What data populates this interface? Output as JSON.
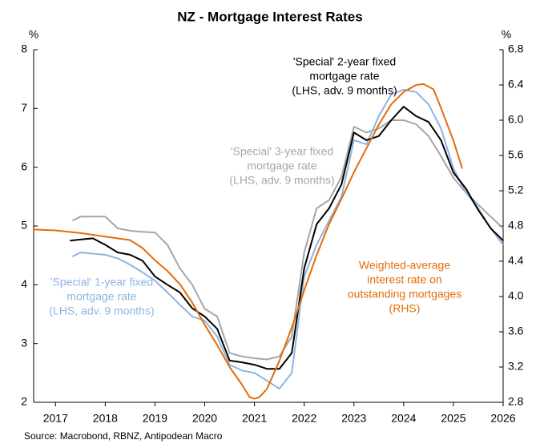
{
  "chart_data": {
    "type": "line",
    "title": "NZ - Mortgage Interest Rates",
    "y_unit": "%",
    "y2_unit": "%",
    "source": "Source: Macrobond, RBNZ, Antipodean Macro",
    "xlim": [
      2017.06,
      2026.5
    ],
    "xticks": [
      {
        "value": 2017.5,
        "label": "2017"
      },
      {
        "value": 2018.5,
        "label": "2018"
      },
      {
        "value": 2019.5,
        "label": "2019"
      },
      {
        "value": 2020.5,
        "label": "2020"
      },
      {
        "value": 2021.5,
        "label": "2021"
      },
      {
        "value": 2022.5,
        "label": "2022"
      },
      {
        "value": 2023.5,
        "label": "2023"
      },
      {
        "value": 2024.5,
        "label": "2024"
      },
      {
        "value": 2025.5,
        "label": "2025"
      },
      {
        "value": 2026.5,
        "label": "2026"
      }
    ],
    "ylim": [
      2,
      8
    ],
    "yticks": [
      2,
      3,
      4,
      5,
      6,
      7,
      8
    ],
    "y2lim": [
      2.8,
      6.8
    ],
    "y2ticks": [
      2.8,
      3.2,
      3.6,
      {
        "value": 4,
        "label": "4.0"
      },
      4.4,
      4.8,
      5.2,
      5.6,
      {
        "value": 6,
        "label": "6.0"
      },
      6.4,
      6.8
    ],
    "grid": false,
    "series": [
      {
        "label": [
          "'Special' 3-year fixed",
          "mortgage rate",
          "(LHS, adv. 9 months)"
        ],
        "color": "#a6a6a6",
        "x": [
          2017.84,
          2018,
          2018.25,
          2018.5,
          2018.75,
          2019,
          2019.25,
          2019.5,
          2019.75,
          2020,
          2020.25,
          2020.5,
          2020.75,
          2021,
          2021.25,
          2021.5,
          2021.75,
          2022,
          2022.25,
          2022.5,
          2022.75,
          2023,
          2023.25,
          2023.5,
          2023.75,
          2024,
          2024.25,
          2024.5,
          2024.75,
          2025,
          2025.25,
          2025.5,
          2025.75,
          2026,
          2026.25,
          2026.5
        ],
        "values": [
          5.09,
          5.16,
          5.16,
          5.16,
          4.96,
          4.92,
          4.9,
          4.89,
          4.68,
          4.28,
          4.0,
          3.59,
          3.46,
          2.84,
          2.78,
          2.75,
          2.73,
          2.78,
          3.12,
          4.55,
          5.3,
          5.44,
          5.84,
          6.69,
          6.59,
          6.66,
          6.8,
          6.8,
          6.73,
          6.53,
          6.19,
          5.82,
          5.57,
          5.36,
          5.16,
          4.96
        ]
      },
      {
        "label": [
          "'Special' 1-year fixed",
          "mortgage rate",
          "(LHS, adv. 9 months)"
        ],
        "color": "#8db4e2",
        "x": [
          2017.84,
          2018,
          2018.25,
          2018.5,
          2018.75,
          2019,
          2019.25,
          2019.5,
          2019.75,
          2020,
          2020.25,
          2020.5,
          2020.75,
          2021,
          2021.25,
          2021.5,
          2021.75,
          2022,
          2022.25,
          2022.5,
          2022.75,
          2023,
          2023.25,
          2023.5,
          2023.75,
          2024,
          2024.25,
          2024.5,
          2024.75,
          2025,
          2025.25,
          2025.5,
          2025.75,
          2026,
          2026.25,
          2026.5
        ],
        "values": [
          4.48,
          4.55,
          4.53,
          4.51,
          4.45,
          4.34,
          4.21,
          4.07,
          3.87,
          3.66,
          3.46,
          3.39,
          3.12,
          2.64,
          2.54,
          2.5,
          2.37,
          2.23,
          2.5,
          4.14,
          4.68,
          5.09,
          5.5,
          6.46,
          6.39,
          6.87,
          7.24,
          7.32,
          7.28,
          7.07,
          6.66,
          5.98,
          5.57,
          5.3,
          4.96,
          4.68
        ]
      },
      {
        "label": [
          "'Special' 2-year fixed",
          "mortgage rate",
          "(LHS, adv. 9 months)"
        ],
        "color": "#000000",
        "x": [
          2017.79,
          2018,
          2018.25,
          2018.5,
          2018.75,
          2019,
          2019.25,
          2019.5,
          2019.75,
          2020,
          2020.25,
          2020.5,
          2020.75,
          2021,
          2021.25,
          2021.5,
          2021.75,
          2022,
          2022.25,
          2022.5,
          2022.75,
          2023,
          2023.25,
          2023.5,
          2023.75,
          2024,
          2024.25,
          2024.5,
          2024.75,
          2025,
          2025.25,
          2025.5,
          2025.75,
          2026,
          2026.25,
          2026.5
        ],
        "values": [
          4.75,
          4.77,
          4.79,
          4.68,
          4.55,
          4.51,
          4.41,
          4.14,
          4.0,
          3.87,
          3.6,
          3.46,
          3.25,
          2.71,
          2.68,
          2.64,
          2.57,
          2.57,
          2.84,
          4.28,
          5.03,
          5.3,
          5.71,
          6.59,
          6.46,
          6.53,
          6.8,
          7.03,
          6.87,
          6.77,
          6.46,
          5.91,
          5.64,
          5.27,
          4.96,
          4.75
        ]
      },
      {
        "label": [
          "Weighted-average",
          "interest rate on",
          "outstanding mortgages",
          "(RHS)"
        ],
        "color": "#e46c0a",
        "axis": "y2",
        "x": [
          2017.06,
          2017.5,
          2018,
          2018.5,
          2019,
          2019.25,
          2019.5,
          2019.75,
          2020,
          2020.25,
          2020.5,
          2020.75,
          2021,
          2021.25,
          2021.4,
          2021.5,
          2021.6,
          2021.75,
          2022,
          2022.25,
          2022.5,
          2022.75,
          2023,
          2023.25,
          2023.5,
          2023.75,
          2024,
          2024.25,
          2024.5,
          2024.75,
          2024.9,
          2025.1,
          2025.25,
          2025.5,
          2025.68
        ],
        "values": [
          4.76,
          4.75,
          4.72,
          4.68,
          4.64,
          4.55,
          4.41,
          4.29,
          4.14,
          3.93,
          3.68,
          3.45,
          3.2,
          3.0,
          2.86,
          2.84,
          2.86,
          2.95,
          3.27,
          3.65,
          4.07,
          4.47,
          4.82,
          5.11,
          5.41,
          5.68,
          5.95,
          6.18,
          6.32,
          6.4,
          6.41,
          6.35,
          6.14,
          5.77,
          5.45
        ]
      }
    ]
  }
}
